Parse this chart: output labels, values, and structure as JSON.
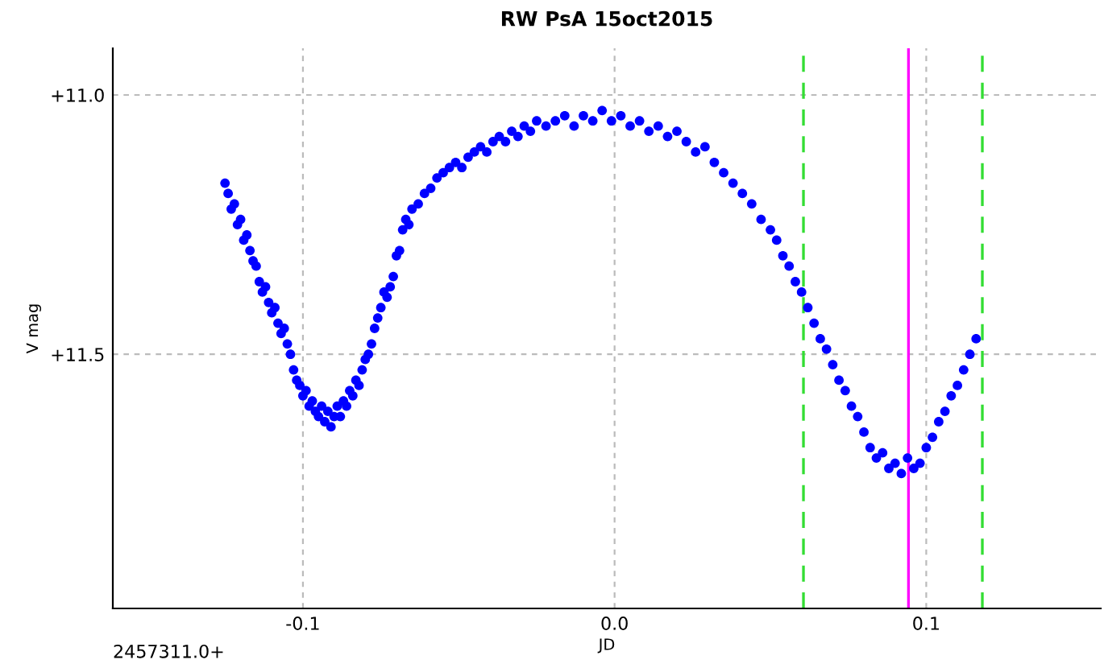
{
  "chart_data": {
    "type": "scatter",
    "title": "RW PsA 15oct2015",
    "xlabel": "JD",
    "ylabel": "V mag",
    "annotations": [
      "2457311.0+"
    ],
    "xlim": [
      -0.161,
      0.156
    ],
    "ylim": [
      11.99,
      10.91
    ],
    "xticks": [
      {
        "value": -0.1,
        "label": "-0.1"
      },
      {
        "value": 0.0,
        "label": "0.0"
      },
      {
        "value": 0.1,
        "label": "0.1"
      }
    ],
    "yticks": [
      {
        "value": 11.0,
        "label": "+11.0"
      },
      {
        "value": 11.5,
        "label": "+11.5"
      }
    ],
    "grid": true,
    "marker": "circle",
    "ref_lines": [
      {
        "axis": "x",
        "value": 0.0606,
        "color": "#33dd33",
        "line_style": "dashed"
      },
      {
        "axis": "x",
        "value": 0.0943,
        "color": "#ff00ff",
        "line_style": "solid"
      },
      {
        "axis": "x",
        "value": 0.118,
        "color": "#33dd33",
        "line_style": "dashed"
      }
    ],
    "series": [
      {
        "color": "#0000ff",
        "x": [
          -0.125,
          -0.124,
          -0.123,
          -0.122,
          -0.121,
          -0.12,
          -0.119,
          -0.118,
          -0.117,
          -0.116,
          -0.115,
          -0.114,
          -0.113,
          -0.112,
          -0.111,
          -0.11,
          -0.109,
          -0.108,
          -0.107,
          -0.106,
          -0.105,
          -0.104,
          -0.103,
          -0.102,
          -0.101,
          -0.1,
          -0.099,
          -0.098,
          -0.097,
          -0.096,
          -0.095,
          -0.094,
          -0.093,
          -0.092,
          -0.091,
          -0.09,
          -0.089,
          -0.088,
          -0.087,
          -0.086,
          -0.085,
          -0.084,
          -0.083,
          -0.082,
          -0.081,
          -0.08,
          -0.079,
          -0.078,
          -0.077,
          -0.076,
          -0.075,
          -0.074,
          -0.073,
          -0.072,
          -0.071,
          -0.07,
          -0.069,
          -0.068,
          -0.067,
          -0.066,
          -0.065,
          -0.063,
          -0.061,
          -0.059,
          -0.057,
          -0.055,
          -0.053,
          -0.051,
          -0.049,
          -0.047,
          -0.045,
          -0.043,
          -0.041,
          -0.039,
          -0.037,
          -0.035,
          -0.033,
          -0.031,
          -0.029,
          -0.027,
          -0.025,
          -0.022,
          -0.019,
          -0.016,
          -0.013,
          -0.01,
          -0.007,
          -0.004,
          -0.001,
          0.002,
          0.005,
          0.008,
          0.011,
          0.014,
          0.017,
          0.02,
          0.023,
          0.026,
          0.029,
          0.032,
          0.035,
          0.038,
          0.041,
          0.044,
          0.047,
          0.05,
          0.052,
          0.054,
          0.056,
          0.058,
          0.06,
          0.062,
          0.064,
          0.066,
          0.068,
          0.07,
          0.072,
          0.074,
          0.076,
          0.078,
          0.08,
          0.082,
          0.084,
          0.086,
          0.088,
          0.09,
          0.092,
          0.094,
          0.096,
          0.098,
          0.1,
          0.102,
          0.104,
          0.106,
          0.108,
          0.11,
          0.112,
          0.114,
          0.116
        ],
        "values": [
          11.17,
          11.19,
          11.22,
          11.21,
          11.25,
          11.24,
          11.28,
          11.27,
          11.3,
          11.32,
          11.33,
          11.36,
          11.38,
          11.37,
          11.4,
          11.42,
          11.41,
          11.44,
          11.46,
          11.45,
          11.48,
          11.5,
          11.53,
          11.55,
          11.56,
          11.58,
          11.57,
          11.6,
          11.59,
          11.61,
          11.62,
          11.6,
          11.63,
          11.61,
          11.64,
          11.62,
          11.6,
          11.62,
          11.59,
          11.6,
          11.57,
          11.58,
          11.55,
          11.56,
          11.53,
          11.51,
          11.5,
          11.48,
          11.45,
          11.43,
          11.41,
          11.38,
          11.39,
          11.37,
          11.35,
          11.31,
          11.3,
          11.26,
          11.24,
          11.25,
          11.22,
          11.21,
          11.19,
          11.18,
          11.16,
          11.15,
          11.14,
          11.13,
          11.14,
          11.12,
          11.11,
          11.1,
          11.11,
          11.09,
          11.08,
          11.09,
          11.07,
          11.08,
          11.06,
          11.07,
          11.05,
          11.06,
          11.05,
          11.04,
          11.06,
          11.04,
          11.05,
          11.03,
          11.05,
          11.04,
          11.06,
          11.05,
          11.07,
          11.06,
          11.08,
          11.07,
          11.09,
          11.11,
          11.1,
          11.13,
          11.15,
          11.17,
          11.19,
          11.21,
          11.24,
          11.26,
          11.28,
          11.31,
          11.33,
          11.36,
          11.38,
          11.41,
          11.44,
          11.47,
          11.49,
          11.52,
          11.55,
          11.57,
          11.6,
          11.62,
          11.65,
          11.68,
          11.7,
          11.69,
          11.72,
          11.71,
          11.73,
          11.7,
          11.72,
          11.71,
          11.68,
          11.66,
          11.63,
          11.61,
          11.58,
          11.56,
          11.53,
          11.5,
          11.47
        ]
      }
    ]
  }
}
